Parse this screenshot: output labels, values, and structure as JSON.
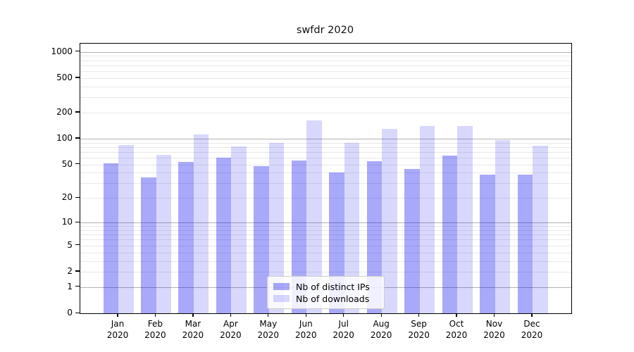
{
  "chart_data": {
    "type": "bar",
    "title": "swfdr 2020",
    "months": [
      "Jan",
      "Feb",
      "Mar",
      "Apr",
      "May",
      "Jun",
      "Jul",
      "Aug",
      "Sep",
      "Oct",
      "Nov",
      "Dec"
    ],
    "year_label": "2020",
    "categories": [
      "Jan 2020",
      "Feb 2020",
      "Mar 2020",
      "Apr 2020",
      "May 2020",
      "Jun 2020",
      "Jul 2020",
      "Aug 2020",
      "Sep 2020",
      "Oct 2020",
      "Nov 2020",
      "Dec 2020"
    ],
    "series": [
      {
        "name": "Nb of distinct IPs",
        "color": "#a9a9f9",
        "rgba": "rgba(10,10,240,0.35)",
        "values": [
          52,
          35,
          54,
          60,
          48,
          56,
          40,
          55,
          44,
          63,
          38,
          38
        ]
      },
      {
        "name": "Nb of downloads",
        "color": "#d8d8fb",
        "rgba": "rgba(10,10,240,0.16)",
        "values": [
          84,
          65,
          112,
          81,
          89,
          164,
          89,
          130,
          140,
          140,
          97,
          82
        ]
      }
    ],
    "xlabel": "",
    "ylabel": "",
    "y_ticks": [
      0,
      1,
      2,
      5,
      10,
      20,
      50,
      100,
      200,
      500,
      1000
    ],
    "y_scale": "log10(1+v)",
    "ylim": [
      0,
      1240
    ],
    "grid": {
      "major_lines": [
        1,
        10,
        100,
        1000
      ],
      "minor_lines": [
        2,
        3,
        4,
        5,
        6,
        7,
        8,
        9,
        20,
        30,
        40,
        50,
        60,
        70,
        80,
        90,
        200,
        300,
        400,
        500,
        600,
        700,
        800,
        900
      ]
    },
    "legend": {
      "position": "lower center",
      "entries": [
        "Nb of distinct IPs",
        "Nb of downloads"
      ]
    }
  }
}
